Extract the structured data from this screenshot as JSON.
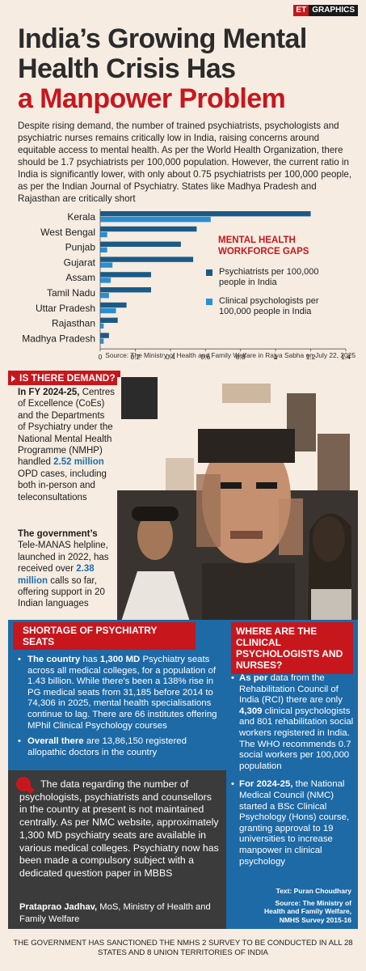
{
  "badge": {
    "et": "ET",
    "graphics": "GRAPHICS"
  },
  "title": {
    "line1": "India’s Growing Mental",
    "line2": "Health Crisis Has",
    "line3": "a Manpower Problem"
  },
  "intro": "Despite rising demand, the number of trained psychiatrists, psychologists and psychiatric nurses remains critically low in India, raising concerns around equitable access to mental health. As per the World Health Organization, there should be 1.7 psychiatrists per 100,000 population. However, the current ratio in India is significantly lower, with only about 0.75 psychiatrists per 100,000 people, as per the Indian Journal of Psychiatry. States like Madhya Pradesh and Rajasthan are critically short",
  "chart_data": {
    "type": "bar",
    "orientation": "horizontal",
    "title": "MENTAL HEALTH WORKFORCE GAPS",
    "categories": [
      "Kerala",
      "West Bengal",
      "Punjab",
      "Gujarat",
      "Assam",
      "Tamil Nadu",
      "Uttar Pradesh",
      "Rajasthan",
      "Madhya Pradesh"
    ],
    "series": [
      {
        "name": "Psychiatrists per 100,000 people in India",
        "color": "#1b5a87",
        "values": [
          1.2,
          0.55,
          0.46,
          0.53,
          0.29,
          0.29,
          0.15,
          0.1,
          0.05
        ]
      },
      {
        "name": "Clinical psychologists per 100,000 people in India",
        "color": "#2a8fd0",
        "values": [
          0.63,
          0.04,
          0.04,
          0.07,
          0.06,
          0.05,
          0.09,
          0.02,
          0.02
        ]
      }
    ],
    "xlim": [
      0,
      1.4
    ],
    "xticks": [
      "0",
      "0.2",
      "0.4",
      "0.6",
      "0.8",
      "1",
      "1.2",
      "1.4"
    ],
    "source": "Source: The Ministry of Health and Family Welfare in Rajya Sabha on July 22, 2025"
  },
  "demand": {
    "tag": "IS THERE DEMAND?",
    "p1_a": "In FY 2024-25,",
    "p1_b": " Centres of Excellence (CoEs) and the Departments of Psychiatry under the National Mental Health Programme (NMHP) handled ",
    "p1_hl": "2.52 million",
    "p1_c": " OPD cases, including both in-person and teleconsultations",
    "p2_a": "The government’s",
    "p2_b": " Tele-MANAS helpline, launched in 2022, has received over ",
    "p2_hl": "2.38 million",
    "p2_c": " calls so far, offering support in 20 Indian languages"
  },
  "shortage": {
    "heading": "SHORTAGE OF PSYCHIATRY SEATS",
    "b1_lead": "The country",
    "b1_mid": " has ",
    "b1_bold": "1,300 MD",
    "b1_rest": " Psychiatry seats across all medical colleges, for a population of 1.43 billion. While there's been a 138% rise in PG medical seats from 31,185 before 2014 to 74,306 in 2025, mental health specialisations continue to lag. There are 66 institutes offering MPhil Clinical Psychology courses",
    "b2_lead": "Overall there",
    "b2_rest": " are 13,86,150 registered allopathic doctors in the country"
  },
  "quote": {
    "text": "The data regarding the number of psychologists, psychiatrists and counsellors in the country at present is not maintained centrally. As per NMC website, approximately 1,300 MD psychiatry seats are available in various medical colleges. Psychiatry now has been made a compulsory subject with a dedicated question paper in MBBS",
    "name": "Prataprao Jadhav,",
    "role": " MoS, Ministry of Health and Family Welfare"
  },
  "where": {
    "heading": "WHERE ARE THE CLINICAL PSYCHOLOGISTS AND NURSES?",
    "b1_lead": "As per",
    "b1_rest": " data from the Rehabilitation Council of India (RCI) there are only ",
    "b1_bold": "4,309",
    "b1_tail": " clinical psychologists and 801 rehabilitation social workers registered in India. The WHO recommends 0.7 social workers per 100,000 population",
    "b2_lead": "For 2024-25,",
    "b2_rest": " the National Medical Council (NMC) started a BSc Clinical Psychology (Hons) course, granting approval to 19 universities to increase manpower in clinical psychology",
    "credit_text": "Text: Puran Choudhary",
    "credit_source": "Source: The Ministry of Health and Family Welfare, NMHS Survey 2015-16"
  },
  "footer": "THE GOVERNMENT HAS SANCTIONED THE NMHS 2 SURVEY TO BE CONDUCTED IN ALL 28 STATES AND 8 UNION TERRITORIES OF INDIA"
}
